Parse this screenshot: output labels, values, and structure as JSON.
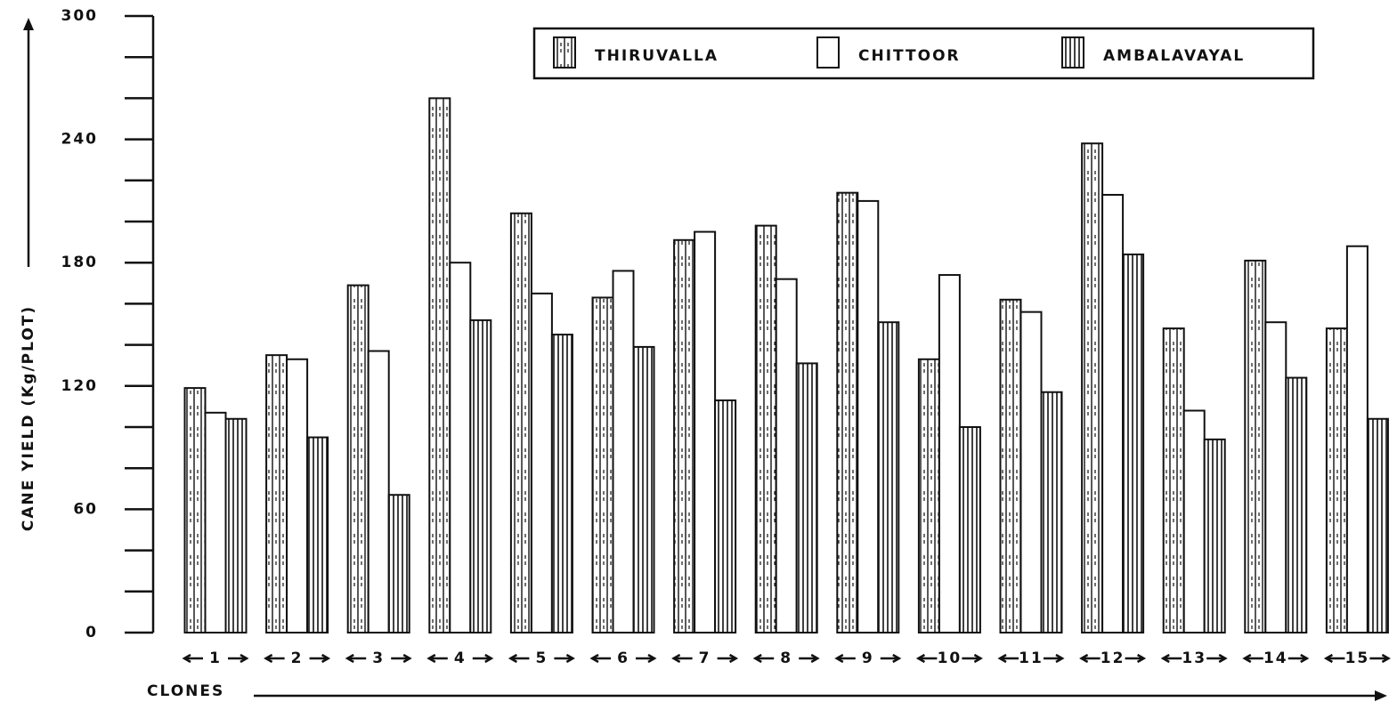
{
  "chart_data": {
    "type": "bar",
    "y_label": "CANE YIELD (Kg/PLOT)",
    "x_label": "CLONES",
    "categories": [
      "1",
      "2",
      "3",
      "4",
      "5",
      "6",
      "7",
      "8",
      "9",
      "10",
      "11",
      "12",
      "13",
      "14",
      "15"
    ],
    "series": [
      {
        "name": "THIRUVALLA",
        "color": "#111111",
        "pattern": "dashed-hatch",
        "values": [
          119,
          135,
          169,
          260,
          204,
          163,
          191,
          198,
          214,
          133,
          162,
          238,
          148,
          181,
          148
        ]
      },
      {
        "name": "CHITTOOR",
        "color": "#111111",
        "pattern": "none",
        "values": [
          107,
          133,
          137,
          180,
          165,
          176,
          195,
          172,
          210,
          174,
          156,
          213,
          108,
          151,
          188
        ]
      },
      {
        "name": "AMBALAVAYAL",
        "color": "#111111",
        "pattern": "hatch",
        "values": [
          104,
          95,
          67,
          152,
          145,
          139,
          113,
          131,
          151,
          100,
          117,
          184,
          94,
          124,
          104
        ]
      }
    ],
    "ylim": [
      0,
      300
    ],
    "yticks": [
      0,
      60,
      120,
      180,
      240,
      300
    ],
    "yminor_ticks": [
      20,
      40,
      80,
      100,
      140,
      160,
      200,
      220,
      260,
      280
    ],
    "legend": "top-right"
  }
}
